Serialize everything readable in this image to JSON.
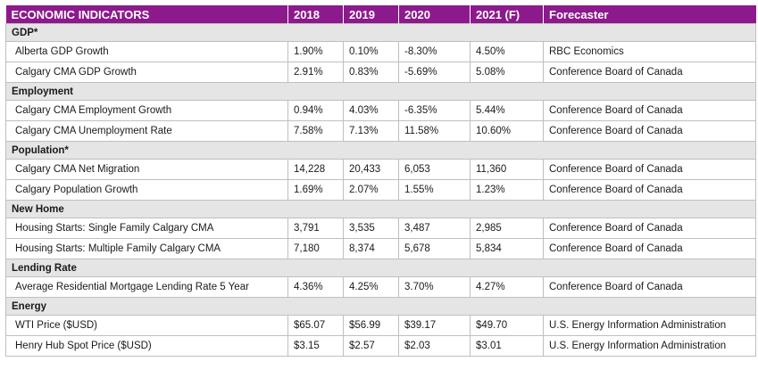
{
  "headers": [
    "ECONOMIC INDICATORS",
    "2018",
    "2019",
    "2020",
    "2021 (F)",
    "Forecaster"
  ],
  "sections": [
    {
      "title": "GDP*",
      "rows": [
        [
          "Alberta GDP Growth",
          "1.90%",
          "0.10%",
          "-8.30%",
          "4.50%",
          "RBC Economics"
        ],
        [
          "Calgary CMA GDP Growth",
          "2.91%",
          "0.83%",
          "-5.69%",
          "5.08%",
          "Conference Board of Canada"
        ]
      ]
    },
    {
      "title": "Employment",
      "rows": [
        [
          "Calgary CMA Employment Growth",
          "0.94%",
          "4.03%",
          "-6.35%",
          "5.44%",
          "Conference Board of Canada"
        ],
        [
          "Calgary CMA Unemployment Rate",
          "7.58%",
          "7.13%",
          "11.58%",
          "10.60%",
          "Conference Board of Canada"
        ]
      ]
    },
    {
      "title": "Population*",
      "rows": [
        [
          "Calgary CMA Net Migration",
          "14,228",
          "20,433",
          "6,053",
          "11,360",
          "Conference Board of Canada"
        ],
        [
          "Calgary Population Growth",
          "1.69%",
          "2.07%",
          "1.55%",
          "1.23%",
          "Conference Board of Canada"
        ]
      ]
    },
    {
      "title": "New Home",
      "rows": [
        [
          "Housing Starts: Single Family Calgary CMA",
          "3,791",
          "3,535",
          "3,487",
          "2,985",
          "Conference Board of Canada"
        ],
        [
          "Housing Starts: Multiple Family Calgary CMA",
          "7,180",
          "8,374",
          "5,678",
          "5,834",
          "Conference Board of Canada"
        ]
      ]
    },
    {
      "title": "Lending Rate",
      "rows": [
        [
          "Average Residential Mortgage Lending Rate 5 Year",
          "4.36%",
          "4.25%",
          "3.70%",
          "4.27%",
          "Conference Board of Canada"
        ]
      ]
    },
    {
      "title": "Energy",
      "rows": [
        [
          "WTI Price ($USD)",
          "$65.07",
          "$56.99",
          "$39.17",
          "$49.70",
          "U.S. Energy Information Administration"
        ],
        [
          "Henry Hub Spot Price ($USD)",
          "$3.15",
          "$2.57",
          "$2.03",
          "$3.01",
          "U.S. Energy Information Administration"
        ]
      ]
    }
  ]
}
